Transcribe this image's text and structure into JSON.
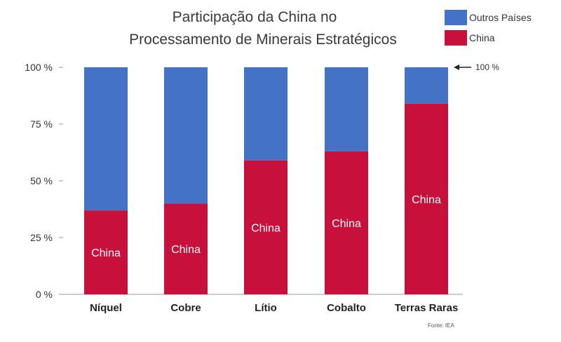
{
  "chart_data": {
    "type": "bar",
    "stacked": true,
    "title_lines": [
      "Participação da China no",
      "Processamento de Minerais Estratégicos"
    ],
    "categories": [
      "Níquel",
      "Cobre",
      "Lítio",
      "Cobalto",
      "Terras Raras"
    ],
    "series": [
      {
        "name": "China",
        "color": "#c8103c",
        "values": [
          37,
          40,
          59,
          63,
          84
        ]
      },
      {
        "name": "Outros Países",
        "color": "#4472c4",
        "values": [
          63,
          60,
          41,
          37,
          16
        ]
      }
    ],
    "bar_labels": [
      "China",
      "China",
      "China",
      "China",
      "China"
    ],
    "yticks": [
      "0 %",
      "25 %",
      "50 %",
      "75 %",
      "100 %"
    ],
    "ylim": [
      0,
      100
    ],
    "legend_position": "top-right",
    "legend": [
      {
        "label": "Outros Países",
        "color": "#4472c4"
      },
      {
        "label": "China",
        "color": "#c8103c"
      }
    ],
    "annotation": "100 %",
    "source": "Fonte: IEA",
    "grid": false
  }
}
